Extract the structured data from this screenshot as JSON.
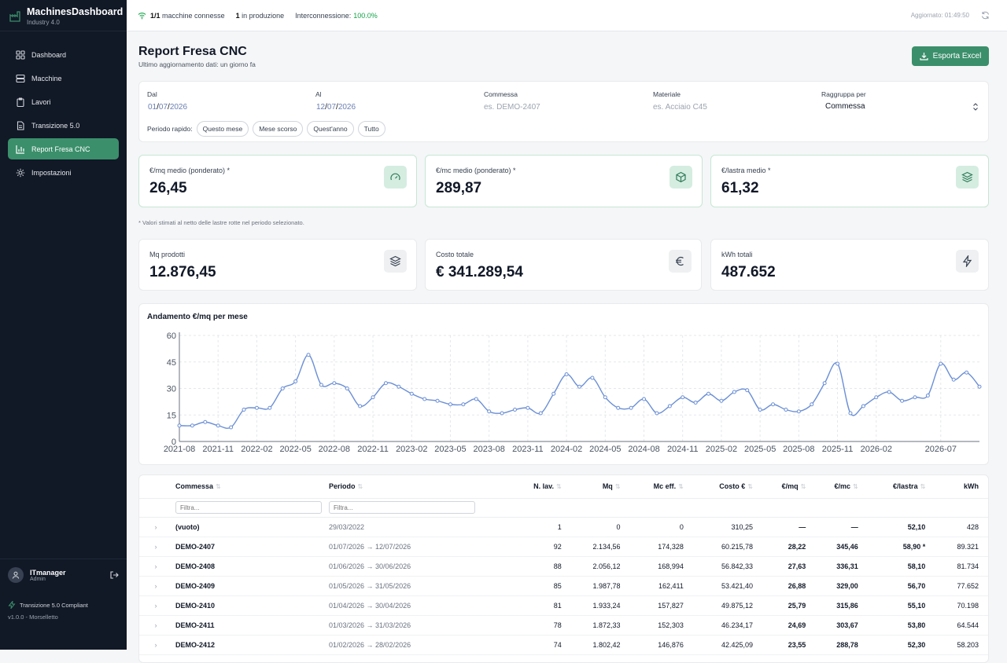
{
  "brand": {
    "title": "MachinesDashboard",
    "subtitle": "Industry 4.0"
  },
  "nav": [
    {
      "label": "Dashboard",
      "icon": "dashboard-icon"
    },
    {
      "label": "Macchine",
      "icon": "server-icon"
    },
    {
      "label": "Lavori",
      "icon": "clipboard-icon"
    },
    {
      "label": "Transizione 5.0",
      "icon": "file-icon"
    },
    {
      "label": "Report Fresa CNC",
      "icon": "bar-chart-icon",
      "active": true
    },
    {
      "label": "Impostazioni",
      "icon": "gear-icon"
    }
  ],
  "user": {
    "name": "ITmanager",
    "role": "Admin"
  },
  "compliance": {
    "label": "Transizione 5.0 Compliant",
    "version": "v1.0.0 - Morselletto"
  },
  "topbar": {
    "machines_count": "1/1",
    "machines_label": "macchine connesse",
    "production_count": "1",
    "production_label": "in produzione",
    "interconn_label": "Interconnessione:",
    "interconn_value": "100.0%",
    "updated": "Aggiornato: 01:49:50"
  },
  "page": {
    "title": "Report Fresa CNC",
    "subtitle": "Ultimo aggiornamento dati: un giorno fa",
    "export_label": "Esporta Excel"
  },
  "filters": {
    "dal_label": "Dal",
    "dal_d": "01",
    "dal_m": "07",
    "dal_y": "2026",
    "al_label": "Al",
    "al_d": "12",
    "al_m": "07",
    "al_y": "2026",
    "commessa_label": "Commessa",
    "commessa_placeholder": "es. DEMO-2407",
    "materiale_label": "Materiale",
    "materiale_placeholder": "es. Acciaio C45",
    "raggruppa_label": "Raggruppa per",
    "raggruppa_value": "Commessa",
    "quick_label": "Periodo rapido:",
    "quick": [
      "Questo mese",
      "Mese scorso",
      "Quest'anno",
      "Tutto"
    ]
  },
  "kpi_top": [
    {
      "label": "€/mq medio (ponderato) *",
      "value": "26,45",
      "icon": "gauge-icon"
    },
    {
      "label": "€/mc medio (ponderato) *",
      "value": "289,87",
      "icon": "box-icon"
    },
    {
      "label": "€/lastra medio *",
      "value": "61,32",
      "icon": "layers-icon"
    }
  ],
  "note": "* Valori stimati al netto delle lastre rotte nel periodo selezionato.",
  "kpi_bottom": [
    {
      "label": "Mq prodotti",
      "value": "12.876,45",
      "icon": "layers-icon"
    },
    {
      "label": "Costo totale",
      "value": "€ 341.289,54",
      "icon": "euro-icon"
    },
    {
      "label": "kWh totali",
      "value": "487.652",
      "icon": "lightning-icon"
    }
  ],
  "chart_title": "Andamento €/mq per mese",
  "chart_data": {
    "type": "line",
    "title": "Andamento €/mq per mese",
    "ylim": [
      0,
      60
    ],
    "yticks": [
      "0",
      "15",
      "30",
      "45",
      "60"
    ],
    "xticks": [
      "2021-08",
      "2021-11",
      "2022-02",
      "2022-05",
      "2022-08",
      "2022-11",
      "2023-02",
      "2023-05",
      "2023-08",
      "2023-11",
      "2024-02",
      "2024-05",
      "2024-08",
      "2024-11",
      "2025-02",
      "2025-05",
      "2025-08",
      "2025-11",
      "2026-02",
      "2026-07"
    ],
    "start": "2021-08",
    "values": [
      9,
      9,
      11,
      9,
      8,
      18,
      19,
      19,
      30,
      34,
      49,
      32,
      33,
      30,
      20,
      25,
      33,
      31,
      27,
      24,
      23,
      21,
      21,
      24,
      17,
      16,
      18,
      19,
      16,
      27,
      38,
      31,
      36,
      25,
      19,
      19,
      24,
      16,
      20,
      25,
      22,
      27,
      23,
      28,
      29,
      18,
      21,
      18,
      17,
      21,
      33,
      44,
      16,
      20,
      25,
      28,
      23,
      25,
      26,
      44,
      35,
      39,
      31
    ]
  },
  "table": {
    "headers": [
      "Commessa",
      "Periodo",
      "N. lav.",
      "Mq",
      "Mc eff.",
      "Costo €",
      "€/mq",
      "€/mc",
      "€/lastra",
      "kWh"
    ],
    "filter_placeholder": "Filtra...",
    "rows": [
      {
        "commessa": "(vuoto)",
        "periodo": "29/03/2022",
        "nlav": "1",
        "mq": "0",
        "mc": "0",
        "costo": "310,25",
        "emq": "—",
        "emc": "—",
        "elastra": "52,10",
        "kwh": "428"
      },
      {
        "commessa": "DEMO-2407",
        "periodo": "01/07/2026 → 12/07/2026",
        "nlav": "92",
        "mq": "2.134,56",
        "mc": "174,328",
        "costo": "60.215,78",
        "emq": "28,22",
        "emc": "345,46",
        "elastra": "58,90 *",
        "kwh": "89.321"
      },
      {
        "commessa": "DEMO-2408",
        "periodo": "01/06/2026 → 30/06/2026",
        "nlav": "88",
        "mq": "2.056,12",
        "mc": "168,994",
        "costo": "56.842,33",
        "emq": "27,63",
        "emc": "336,31",
        "elastra": "58,10",
        "kwh": "81.734"
      },
      {
        "commessa": "DEMO-2409",
        "periodo": "01/05/2026 → 31/05/2026",
        "nlav": "85",
        "mq": "1.987,78",
        "mc": "162,411",
        "costo": "53.421,40",
        "emq": "26,88",
        "emc": "329,00",
        "elastra": "56,70",
        "kwh": "77.652"
      },
      {
        "commessa": "DEMO-2410",
        "periodo": "01/04/2026 → 30/04/2026",
        "nlav": "81",
        "mq": "1.933,24",
        "mc": "157,827",
        "costo": "49.875,12",
        "emq": "25,79",
        "emc": "315,86",
        "elastra": "55,10",
        "kwh": "70.198"
      },
      {
        "commessa": "DEMO-2411",
        "periodo": "01/03/2026 → 31/03/2026",
        "nlav": "78",
        "mq": "1.872,33",
        "mc": "152,303",
        "costo": "46.234,17",
        "emq": "24,69",
        "emc": "303,67",
        "elastra": "53,80",
        "kwh": "64.544"
      },
      {
        "commessa": "DEMO-2412",
        "periodo": "01/02/2026 → 28/02/2026",
        "nlav": "74",
        "mq": "1.802,42",
        "mc": "146,876",
        "costo": "42.425,09",
        "emq": "23,55",
        "emc": "288,78",
        "elastra": "52,30",
        "kwh": "58.203"
      }
    ]
  }
}
